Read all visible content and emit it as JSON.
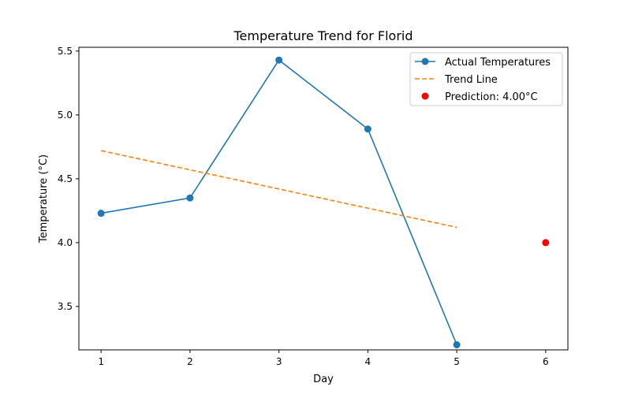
{
  "chart_data": {
    "type": "line",
    "title": "Temperature Trend for Florid",
    "xlabel": "Day",
    "ylabel": "Temperature (°C)",
    "xlim": [
      0.75,
      6.25
    ],
    "ylim": [
      3.16,
      5.53
    ],
    "x_ticks": [
      1,
      2,
      3,
      4,
      5,
      6
    ],
    "y_ticks": [
      3.5,
      4.0,
      4.5,
      5.0,
      5.5
    ],
    "grid": false,
    "legend_position": "top-right",
    "series": [
      {
        "name": "Actual Temperatures",
        "kind": "line-marker",
        "color": "#1f77b4",
        "x": [
          1,
          2,
          3,
          4,
          5
        ],
        "y": [
          4.23,
          4.35,
          5.43,
          4.89,
          3.2
        ]
      },
      {
        "name": "Trend Line",
        "kind": "dashed-line",
        "color": "#ff7f0e",
        "x": [
          1,
          5
        ],
        "y": [
          4.72,
          4.12
        ]
      },
      {
        "name": "Prediction: 4.00°C",
        "kind": "scatter",
        "color": "#ff0000",
        "x": [
          6
        ],
        "y": [
          4.0
        ]
      }
    ]
  }
}
